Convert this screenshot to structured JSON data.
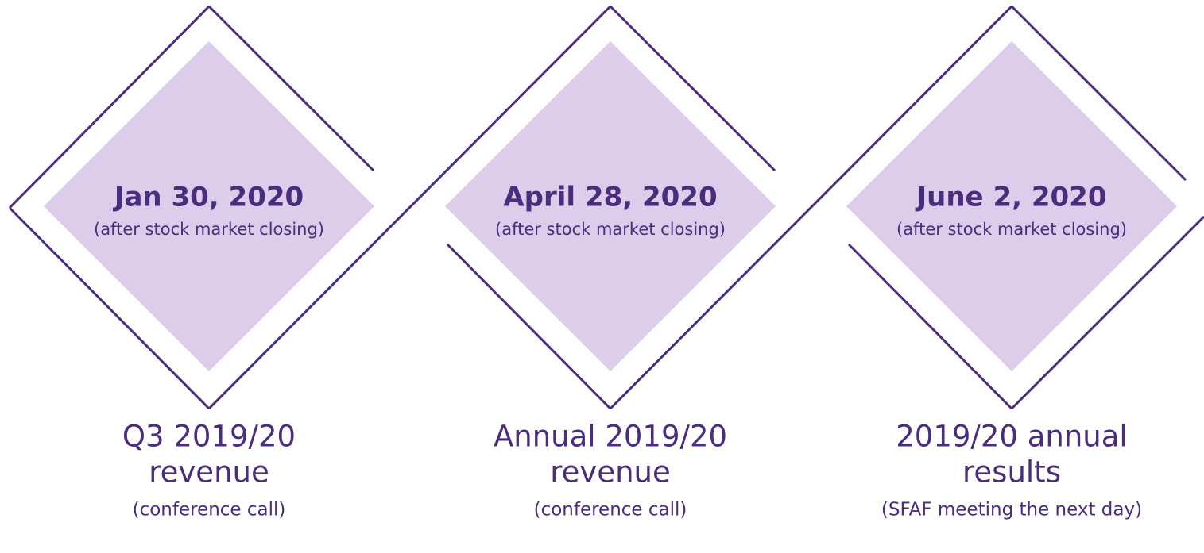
{
  "items": [
    {
      "date": "Jan 30, 2020",
      "note": "(after stock market closing)",
      "title_line1": "Q3 2019/20",
      "title_line2": "revenue",
      "subtitle": "(conference call)"
    },
    {
      "date": "April 28, 2020",
      "note": "(after stock market closing)",
      "title_line1": "Annual 2019/20",
      "title_line2": "revenue",
      "subtitle": "(conference call)"
    },
    {
      "date": "June 2, 2020",
      "note": "(after stock market closing)",
      "title_line1": "2019/20 annual",
      "title_line2": "results",
      "subtitle": "(SFAF meeting the next day)"
    }
  ]
}
